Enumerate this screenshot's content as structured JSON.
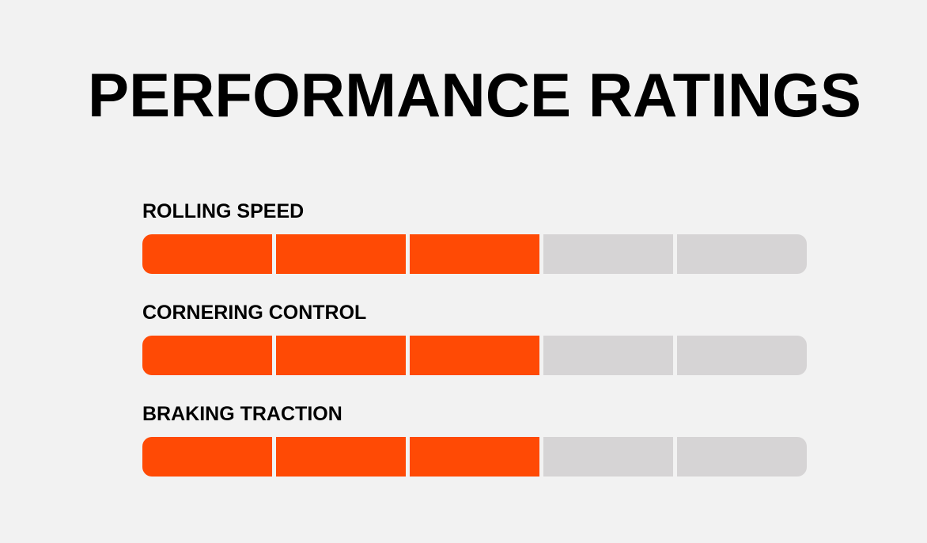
{
  "title": "PERFORMANCE RATINGS",
  "colors": {
    "background": "#f2f2f2",
    "filled": "#ff4a05",
    "empty": "#d6d4d5",
    "text": "#000000"
  },
  "ratings": [
    {
      "label": "ROLLING SPEED",
      "value": 3,
      "max": 5
    },
    {
      "label": "CORNERING CONTROL",
      "value": 3,
      "max": 5
    },
    {
      "label": "BRAKING TRACTION",
      "value": 3,
      "max": 5
    }
  ]
}
